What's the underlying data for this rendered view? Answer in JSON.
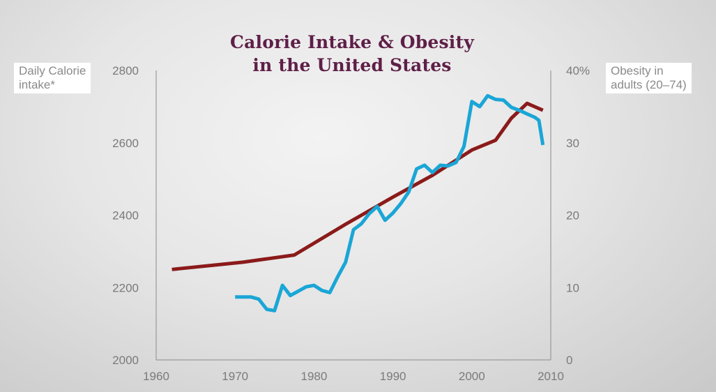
{
  "chart_data": {
    "type": "line",
    "title": [
      "Calorie Intake & Obesity",
      "in the United States"
    ],
    "ylabel": [
      "Daily Calorie",
      "intake*"
    ],
    "y2label": [
      "Obesity in",
      "adults (20–74)"
    ],
    "xlim": [
      1960,
      2010
    ],
    "ylim": [
      2000,
      2800
    ],
    "y2lim": [
      0,
      40
    ],
    "x_ticks": [
      1960,
      1970,
      1980,
      1990,
      2000,
      2010
    ],
    "y_ticks": [
      "2000",
      "2200",
      "2400",
      "2600",
      "2800"
    ],
    "y2_ticks": [
      "0",
      "10",
      "20",
      "30",
      "40%"
    ],
    "series": [
      {
        "name": "Daily Calorie intake",
        "axis": "left",
        "color": "#8b1a1a",
        "x": [
          1962,
          1971,
          1977.5,
          1984,
          1990,
          1995,
          2000,
          2003,
          2005,
          2007,
          2009
        ],
        "y": [
          2250,
          2270,
          2290,
          2375,
          2450,
          2510,
          2580,
          2607,
          2668,
          2709,
          2690
        ]
      },
      {
        "name": "Obesity in adults (20–74)",
        "axis": "right",
        "color": "#1aa6d6",
        "x": [
          1970,
          1972,
          1973,
          1974,
          1975,
          1976,
          1977,
          1978,
          1979,
          1980,
          1981,
          1982,
          1983,
          1984,
          1985,
          1986,
          1987,
          1988,
          1989,
          1990,
          1991,
          1992,
          1993,
          1994,
          1995,
          1996,
          1997,
          1998,
          1999,
          2000,
          2001,
          2002,
          2003,
          2004,
          2005,
          2006,
          2007,
          2008,
          2008.5,
          2009
        ],
        "y": [
          8.7,
          8.7,
          8.4,
          7.0,
          6.8,
          10.3,
          8.9,
          9.5,
          10.1,
          10.3,
          9.6,
          9.3,
          11.5,
          13.5,
          18.0,
          18.8,
          20.2,
          21.2,
          19.3,
          20.3,
          21.6,
          23.2,
          26.4,
          26.9,
          25.9,
          26.9,
          26.8,
          27.3,
          29.5,
          35.7,
          35.0,
          36.5,
          36.0,
          35.9,
          34.9,
          34.5,
          34.0,
          33.5,
          33.1,
          29.7
        ]
      }
    ]
  }
}
